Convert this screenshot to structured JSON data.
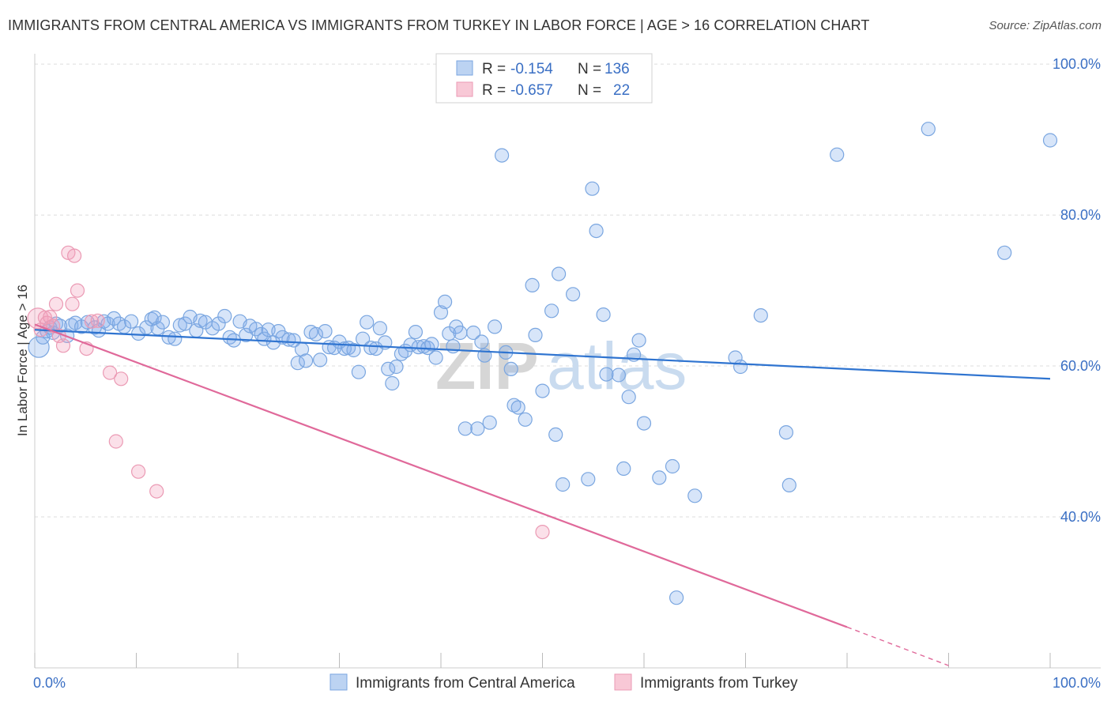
{
  "title": "IMMIGRANTS FROM CENTRAL AMERICA VS IMMIGRANTS FROM TURKEY IN LABOR FORCE | AGE > 16 CORRELATION CHART",
  "source": "Source: ZipAtlas.com",
  "watermark": {
    "zip": "ZIP",
    "atlas": "atlas"
  },
  "chart_data": {
    "type": "scatter",
    "title": "IMMIGRANTS FROM CENTRAL AMERICA VS IMMIGRANTS FROM TURKEY IN LABOR FORCE | AGE > 16 CORRELATION CHART",
    "xlabel": "",
    "ylabel": "In Labor Force | Age > 16",
    "xlim": [
      0,
      100
    ],
    "ylim": [
      20,
      102
    ],
    "x_tick_labels": [
      "0.0%",
      "100.0%"
    ],
    "y_ticks": [
      {
        "value": 40,
        "label": "40.0%"
      },
      {
        "value": 60,
        "label": "60.0%"
      },
      {
        "value": 80,
        "label": "80.0%"
      },
      {
        "value": 100,
        "label": "100.0%"
      }
    ],
    "grid": "horizontal dashed",
    "legend_position": "bottom-center",
    "stats_box_position": "top-center",
    "series": [
      {
        "name": "Immigrants from Central America",
        "color": "#6fa3e6",
        "line_color": "#2f74d0",
        "r": "-0.154",
        "n": "136",
        "trend": {
          "x": [
            0,
            100
          ],
          "y": [
            64.8,
            58.3
          ]
        },
        "points": [
          [
            0.4,
            62.5
          ],
          [
            0.8,
            63.8
          ],
          [
            1.2,
            64.6
          ],
          [
            1.5,
            65.1
          ],
          [
            1.8,
            64.4
          ],
          [
            2.1,
            65.6
          ],
          [
            2.5,
            65.3
          ],
          [
            3.2,
            64.0
          ],
          [
            3.6,
            65.4
          ],
          [
            4.0,
            65.7
          ],
          [
            4.6,
            65.2
          ],
          [
            5.2,
            65.8
          ],
          [
            5.9,
            65.1
          ],
          [
            6.3,
            64.7
          ],
          [
            6.8,
            65.9
          ],
          [
            7.2,
            65.6
          ],
          [
            7.8,
            66.3
          ],
          [
            8.3,
            65.6
          ],
          [
            8.8,
            65.2
          ],
          [
            9.5,
            65.9
          ],
          [
            10.2,
            64.3
          ],
          [
            11.0,
            65.1
          ],
          [
            11.5,
            66.2
          ],
          [
            11.8,
            66.4
          ],
          [
            12.1,
            65.0
          ],
          [
            12.6,
            65.8
          ],
          [
            13.2,
            63.8
          ],
          [
            13.8,
            63.6
          ],
          [
            14.3,
            65.4
          ],
          [
            14.8,
            65.6
          ],
          [
            15.3,
            66.5
          ],
          [
            15.9,
            64.7
          ],
          [
            16.3,
            66.0
          ],
          [
            16.8,
            65.8
          ],
          [
            17.5,
            65.0
          ],
          [
            18.1,
            65.6
          ],
          [
            18.7,
            66.6
          ],
          [
            19.2,
            63.8
          ],
          [
            19.6,
            63.4
          ],
          [
            20.2,
            65.9
          ],
          [
            20.8,
            64.1
          ],
          [
            21.2,
            65.3
          ],
          [
            21.8,
            64.9
          ],
          [
            22.3,
            64.2
          ],
          [
            22.6,
            63.6
          ],
          [
            23.0,
            64.8
          ],
          [
            23.5,
            63.1
          ],
          [
            24.0,
            64.6
          ],
          [
            24.4,
            63.8
          ],
          [
            25.0,
            63.5
          ],
          [
            25.5,
            63.4
          ],
          [
            25.9,
            60.4
          ],
          [
            26.3,
            62.2
          ],
          [
            26.7,
            60.7
          ],
          [
            27.2,
            64.5
          ],
          [
            27.7,
            64.2
          ],
          [
            28.1,
            60.8
          ],
          [
            28.6,
            64.6
          ],
          [
            29.0,
            62.5
          ],
          [
            29.5,
            62.4
          ],
          [
            30.0,
            63.2
          ],
          [
            30.5,
            62.3
          ],
          [
            30.9,
            62.4
          ],
          [
            31.4,
            62.1
          ],
          [
            31.9,
            59.2
          ],
          [
            32.3,
            63.6
          ],
          [
            32.7,
            65.8
          ],
          [
            33.1,
            62.4
          ],
          [
            33.6,
            62.3
          ],
          [
            34.0,
            65.0
          ],
          [
            34.5,
            63.1
          ],
          [
            34.8,
            59.6
          ],
          [
            35.2,
            57.7
          ],
          [
            35.6,
            59.9
          ],
          [
            36.1,
            61.6
          ],
          [
            36.5,
            62.0
          ],
          [
            37.0,
            62.8
          ],
          [
            37.5,
            64.5
          ],
          [
            37.8,
            62.5
          ],
          [
            38.3,
            62.6
          ],
          [
            38.7,
            62.4
          ],
          [
            39.1,
            62.9
          ],
          [
            39.5,
            61.1
          ],
          [
            40.0,
            67.1
          ],
          [
            40.4,
            68.5
          ],
          [
            40.8,
            64.3
          ],
          [
            41.2,
            62.6
          ],
          [
            41.5,
            65.2
          ],
          [
            41.9,
            64.4
          ],
          [
            42.4,
            51.7
          ],
          [
            43.2,
            64.4
          ],
          [
            43.6,
            51.7
          ],
          [
            44.0,
            63.2
          ],
          [
            44.3,
            61.4
          ],
          [
            44.8,
            52.5
          ],
          [
            45.3,
            65.2
          ],
          [
            46.0,
            87.9
          ],
          [
            46.4,
            61.8
          ],
          [
            46.9,
            59.6
          ],
          [
            47.2,
            54.8
          ],
          [
            47.6,
            54.5
          ],
          [
            48.3,
            52.9
          ],
          [
            49.0,
            70.7
          ],
          [
            49.3,
            64.1
          ],
          [
            50.0,
            56.7
          ],
          [
            50.9,
            67.3
          ],
          [
            51.3,
            50.9
          ],
          [
            51.6,
            72.2
          ],
          [
            52.0,
            44.3
          ],
          [
            53.0,
            69.5
          ],
          [
            54.5,
            45.0
          ],
          [
            54.9,
            83.5
          ],
          [
            55.3,
            77.9
          ],
          [
            56.0,
            66.8
          ],
          [
            56.3,
            58.9
          ],
          [
            57.5,
            58.8
          ],
          [
            58.0,
            46.4
          ],
          [
            58.5,
            55.9
          ],
          [
            59.0,
            61.5
          ],
          [
            59.5,
            63.4
          ],
          [
            60.0,
            52.4
          ],
          [
            61.5,
            45.2
          ],
          [
            62.8,
            46.7
          ],
          [
            63.2,
            29.3
          ],
          [
            65.0,
            42.8
          ],
          [
            69.0,
            61.1
          ],
          [
            69.5,
            59.9
          ],
          [
            71.5,
            66.7
          ],
          [
            74.0,
            51.2
          ],
          [
            74.3,
            44.2
          ],
          [
            79.0,
            88.0
          ],
          [
            88.0,
            91.4
          ],
          [
            95.5,
            75.0
          ],
          [
            100.0,
            89.9
          ]
        ]
      },
      {
        "name": "Immigrants from Turkey",
        "color": "#f0a0ba",
        "line_color": "#e0699a",
        "r": "-0.657",
        "n": "22",
        "trend": {
          "x": [
            0,
            80
          ],
          "y": [
            65.5,
            25.4
          ]
        },
        "trend_dashed": {
          "x": [
            80,
            90
          ],
          "y": [
            25.4,
            20.3
          ]
        },
        "points": [
          [
            0.3,
            66.3
          ],
          [
            0.6,
            64.8
          ],
          [
            1.0,
            66.4
          ],
          [
            1.2,
            65.7
          ],
          [
            1.5,
            66.5
          ],
          [
            1.8,
            65.3
          ],
          [
            2.1,
            68.2
          ],
          [
            2.4,
            64.0
          ],
          [
            2.8,
            62.7
          ],
          [
            3.3,
            75.0
          ],
          [
            3.7,
            68.2
          ],
          [
            3.9,
            74.6
          ],
          [
            4.2,
            70.0
          ],
          [
            5.1,
            62.3
          ],
          [
            5.6,
            65.9
          ],
          [
            7.4,
            59.1
          ],
          [
            8.0,
            50.0
          ],
          [
            8.5,
            58.3
          ],
          [
            10.2,
            46.0
          ],
          [
            12.0,
            43.4
          ],
          [
            50.0,
            38.0
          ],
          [
            6.2,
            66.0
          ]
        ]
      }
    ]
  }
}
